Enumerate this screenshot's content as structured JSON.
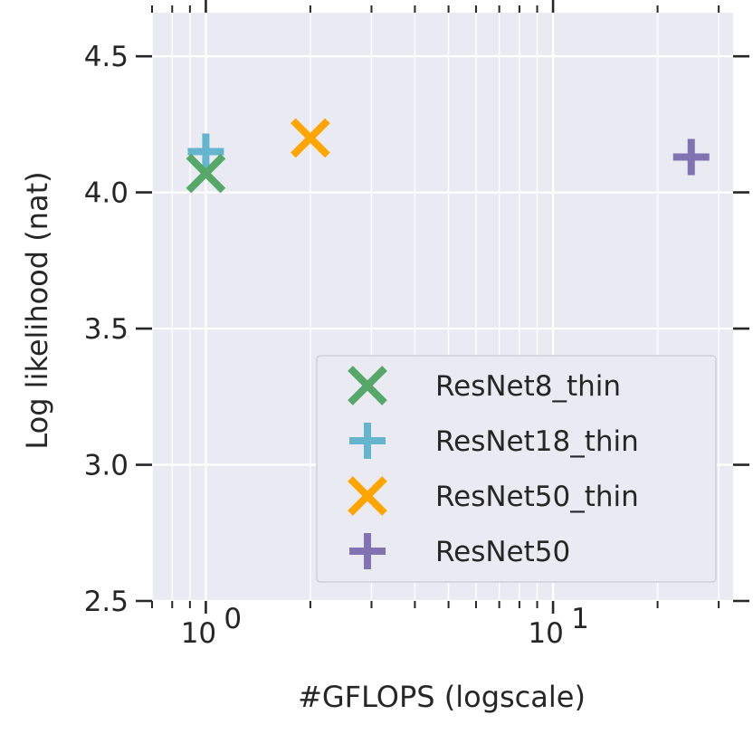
{
  "chart_data": {
    "type": "scatter",
    "xlabel": "#GFLOPS (logscale)",
    "ylabel": "Log likelihood (nat)",
    "xscale": "log",
    "xlim": [
      0.7,
      33
    ],
    "ylim": [
      2.5,
      4.66
    ],
    "grid": true,
    "legend_position": "lower-right",
    "x_tick_labels": [
      {
        "base": "10",
        "exp": "0",
        "value": 1
      },
      {
        "base": "10",
        "exp": "1",
        "value": 10
      }
    ],
    "y_ticks": [
      {
        "value": 2.5,
        "label": "2.5"
      },
      {
        "value": 3.0,
        "label": "3.0"
      },
      {
        "value": 3.5,
        "label": "3.5"
      },
      {
        "value": 4.0,
        "label": "4.0"
      },
      {
        "value": 4.5,
        "label": "4.5"
      }
    ],
    "series": [
      {
        "name": "ResNet8_thin",
        "marker": "x",
        "color": "#55a868",
        "x": [
          1.0
        ],
        "y": [
          4.07
        ]
      },
      {
        "name": "ResNet18_thin",
        "marker": "plus",
        "color": "#64b5cd",
        "x": [
          1.0
        ],
        "y": [
          4.15
        ]
      },
      {
        "name": "ResNet50_thin",
        "marker": "x",
        "color": "#ffa500",
        "x": [
          2.0
        ],
        "y": [
          4.2
        ]
      },
      {
        "name": "ResNet50",
        "marker": "plus",
        "color": "#8172b2",
        "x": [
          25.0
        ],
        "y": [
          4.13
        ]
      }
    ]
  },
  "style": {
    "plot_background": "#eaeaf2",
    "grid_color": "#ffffff",
    "text_color": "#262626"
  }
}
